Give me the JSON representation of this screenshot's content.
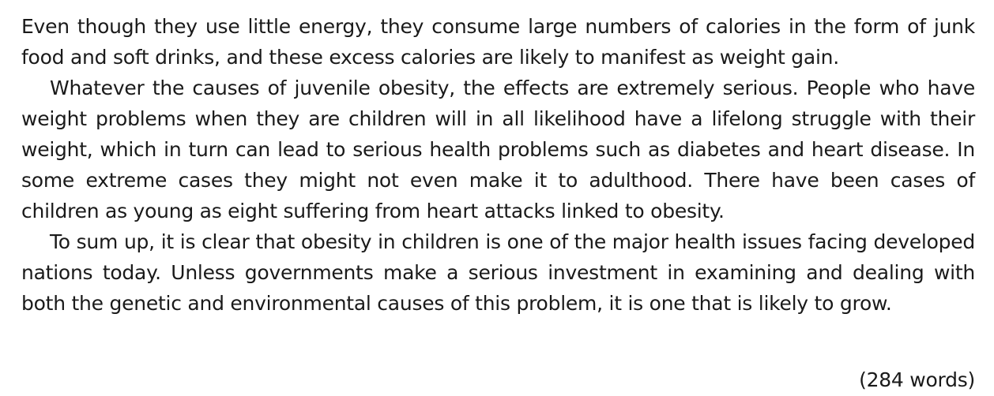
{
  "paragraphs": [
    "Even though they use little energy, they consume large numbers of calories in the form of junk food and soft drinks, and these excess calories are likely to manifest as weight gain.",
    "Whatever the causes of juvenile obesity, the effects are extremely serious. People who have weight problems when they are children will in all likelihood have a lifelong struggle with their weight, which in turn can lead to serious health problems such as diabetes and heart disease. In some extreme cases they might not even make it to adulthood. There have been cases of children as young as eight suffering from heart attacks linked to obesity.",
    "To sum up, it is clear that obesity in children is one of the major health issues facing developed nations today. Unless governments make a serious investment in examining and dealing with both the genetic and environmental causes of this problem, it is one that is likely to grow."
  ],
  "word_count": "(284 words)"
}
